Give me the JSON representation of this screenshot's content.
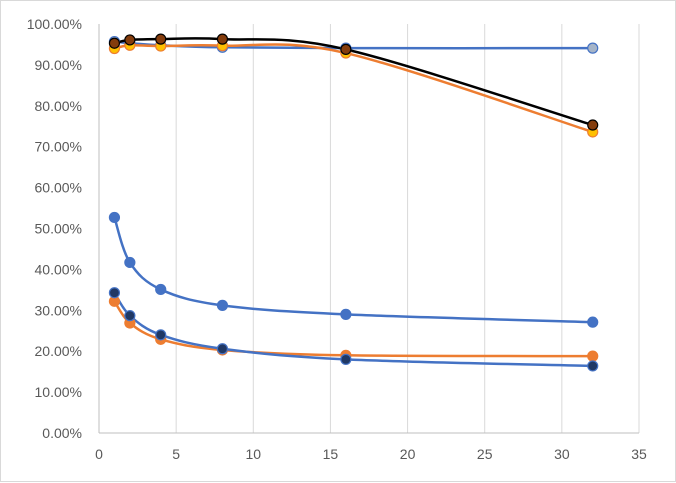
{
  "chart_data": {
    "type": "scatter",
    "title": "",
    "xlabel": "",
    "ylabel": "",
    "xlim": [
      0,
      35
    ],
    "ylim": [
      0,
      1
    ],
    "x_ticks": [
      "0",
      "5",
      "10",
      "15",
      "20",
      "25",
      "30",
      "35"
    ],
    "y_ticks": [
      "0.00%",
      "10.00%",
      "20.00%",
      "30.00%",
      "40.00%",
      "50.00%",
      "60.00%",
      "70.00%",
      "80.00%",
      "90.00%",
      "100.00%"
    ],
    "grid": "vertical",
    "legend": "none",
    "x": [
      1,
      2,
      4,
      8,
      16,
      32
    ],
    "series": [
      {
        "color": "#4472c4",
        "marker": "#a5b4c8",
        "values": [
          0.957,
          0.953,
          0.948,
          0.943,
          0.941,
          0.941
        ]
      },
      {
        "color": "#ed7d31",
        "marker": "#ffc000",
        "values": [
          0.94,
          0.948,
          0.946,
          0.947,
          0.929,
          0.736
        ]
      },
      {
        "color": "#000000",
        "marker": "#843c0c",
        "values": [
          0.953,
          0.961,
          0.963,
          0.963,
          0.938,
          0.753
        ]
      },
      {
        "color": "#4472c4",
        "marker": "#4472c4",
        "values": [
          0.527,
          0.417,
          0.351,
          0.312,
          0.29,
          0.271
        ]
      },
      {
        "color": "#ed7d31",
        "marker": "#ed7d31",
        "values": [
          0.322,
          0.269,
          0.229,
          0.203,
          0.19,
          0.188
        ]
      },
      {
        "color": "#4472c4",
        "marker": "#203864",
        "values": [
          0.343,
          0.287,
          0.24,
          0.206,
          0.18,
          0.164
        ]
      }
    ]
  }
}
